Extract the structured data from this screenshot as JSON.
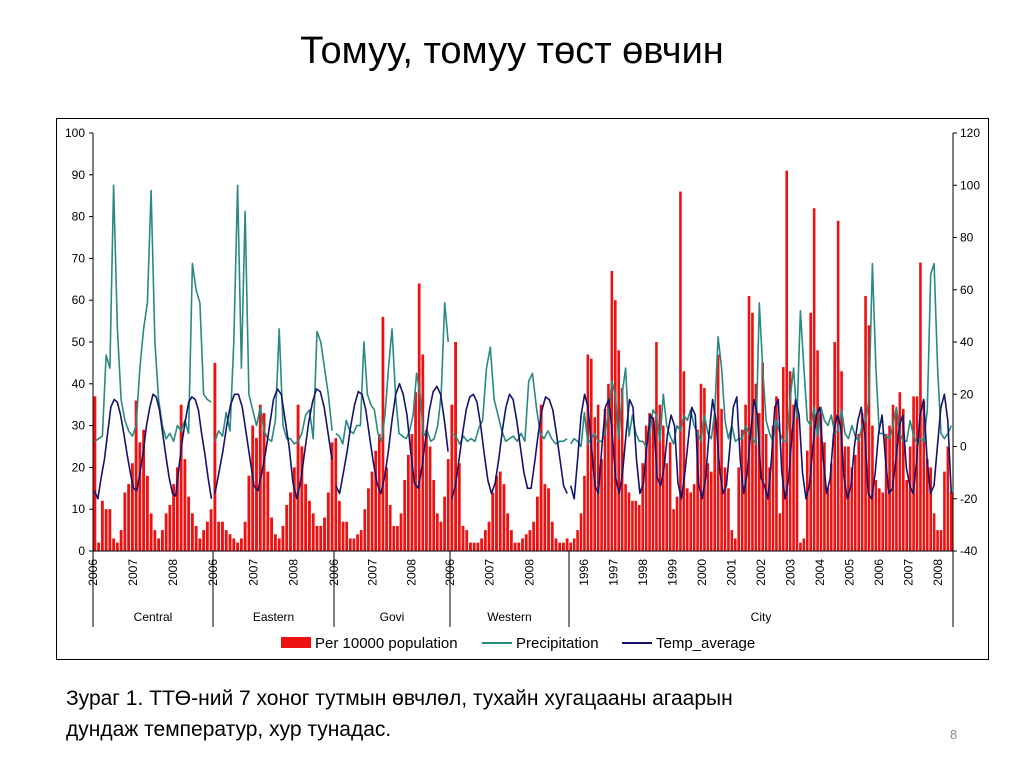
{
  "title": "Томуу, томуу төст өвчин",
  "caption_line1": "Зураг 1. ТТӨ-ний 7 хоног тутмын өвчлөл, тухайн хугацааны агаарын",
  "caption_line2": "дундаж температур, хур тунадас.",
  "page_number": "8",
  "colors": {
    "bars": "#ee1111",
    "precipitation": "#2a8a80",
    "temperature": "#14146e"
  },
  "chart_data": {
    "type": "bar",
    "combo": "bar + line (secondary axis)",
    "grid": false,
    "legend_position": "bottom",
    "y_left": {
      "ticks": [
        0,
        10,
        20,
        30,
        40,
        50,
        60,
        70,
        80,
        90,
        100
      ],
      "range": [
        0,
        100
      ]
    },
    "y_right": {
      "ticks": [
        -40,
        -20,
        0,
        20,
        40,
        60,
        80,
        100,
        120
      ],
      "range": [
        -40,
        120
      ]
    },
    "groups": [
      {
        "name": "Central",
        "year_labels": [
          "2006",
          "2007",
          "2008"
        ]
      },
      {
        "name": "Eastern",
        "year_labels": [
          "2006",
          "2007",
          "2008"
        ]
      },
      {
        "name": "Govi",
        "year_labels": [
          "2006",
          "2007",
          "2008"
        ]
      },
      {
        "name": "Western",
        "year_labels": [
          "2006",
          "2007",
          "2008"
        ]
      },
      {
        "name": "City",
        "year_labels": [
          "1996",
          "1997",
          "1998",
          "1999",
          "2000",
          "2001",
          "2002",
          "2003",
          "2004",
          "2005",
          "2006",
          "2007",
          "2008"
        ]
      }
    ],
    "series": [
      {
        "name": "Per 10000 population",
        "type": "bar",
        "axis": "left",
        "values": [
          [
            37,
            2,
            12,
            10,
            10,
            3,
            2,
            5,
            14,
            16,
            21,
            36,
            26,
            29,
            18,
            9,
            5,
            3,
            5,
            9,
            11,
            16,
            20,
            35,
            22,
            13,
            9,
            6,
            3,
            5,
            7,
            10
          ],
          [
            45,
            7,
            7,
            5,
            4,
            3,
            2,
            3,
            7,
            18,
            30,
            27,
            35,
            33,
            19,
            8,
            4,
            3,
            6,
            11,
            14,
            20,
            35,
            25,
            16,
            12,
            9,
            6,
            6,
            8,
            14,
            26
          ],
          [
            27,
            12,
            7,
            7,
            3,
            3,
            4,
            5,
            10,
            15,
            19,
            24,
            28,
            56,
            20,
            11,
            6,
            6,
            9,
            17,
            23,
            28,
            38,
            64,
            47,
            29,
            25,
            17,
            9,
            7,
            13,
            22
          ],
          [
            35,
            50,
            21,
            6,
            5,
            2,
            2,
            2,
            3,
            5,
            7,
            14,
            18,
            19,
            16,
            9,
            5,
            2,
            2,
            3,
            4,
            5,
            7,
            13,
            35,
            16,
            15,
            7,
            3,
            2,
            2,
            3
          ],
          [
            2,
            3,
            5,
            9,
            18,
            47,
            46,
            32,
            35,
            22,
            34,
            40,
            67,
            60,
            48,
            39,
            16,
            14,
            12,
            12,
            11,
            21,
            30,
            33,
            32,
            50,
            35,
            30,
            21,
            26,
            10,
            13,
            86,
            43,
            15,
            14,
            16,
            29,
            40,
            39,
            21,
            19,
            32,
            47,
            34,
            20,
            15,
            5,
            3,
            20,
            29,
            35,
            61,
            57,
            40,
            33,
            45,
            28,
            20,
            30,
            37,
            9,
            44,
            91,
            43,
            35,
            34,
            2,
            3,
            24,
            57,
            82,
            48,
            33,
            26,
            15,
            21,
            50,
            79,
            43,
            25,
            25,
            20,
            23,
            28,
            33,
            61,
            54,
            30,
            17,
            15,
            14,
            28,
            30,
            35,
            33,
            38,
            34,
            17,
            25,
            37,
            37,
            69,
            36,
            22,
            20,
            9,
            5,
            5,
            19,
            25,
            14
          ]
        ]
      },
      {
        "name": "Precipitation",
        "type": "line",
        "axis": "right",
        "values": [
          [
            2,
            3,
            4,
            35,
            30,
            100,
            45,
            18,
            10,
            6,
            4,
            8,
            30,
            45,
            55,
            98,
            40,
            18,
            8,
            3,
            5,
            2,
            8,
            6,
            10,
            5,
            70,
            60,
            55,
            20,
            18,
            17
          ],
          [
            2,
            6,
            4,
            13,
            6,
            40,
            100,
            30,
            90,
            20,
            14,
            8,
            15,
            6,
            3,
            2,
            10,
            45,
            8,
            3,
            3,
            1,
            2,
            5,
            12,
            14,
            3,
            44,
            40,
            30,
            20,
            6
          ],
          [
            5,
            4,
            1,
            10,
            6,
            5,
            8,
            8,
            40,
            20,
            16,
            14,
            5,
            2,
            12,
            30,
            45,
            20,
            5,
            4,
            3,
            6,
            12,
            28,
            20,
            4,
            6,
            2,
            3,
            8,
            20,
            55,
            40
          ],
          [
            5,
            4,
            1,
            4,
            2,
            3,
            2,
            7,
            10,
            30,
            38,
            18,
            12,
            6,
            2,
            3,
            4,
            2,
            5,
            2,
            25,
            28,
            15,
            5,
            3,
            6,
            3,
            1,
            2,
            2,
            3
          ],
          [
            1,
            3,
            2,
            0,
            13,
            1,
            3,
            5,
            2,
            2,
            5,
            12,
            25,
            20,
            3,
            20,
            30,
            4,
            12,
            5,
            2,
            2,
            0,
            5,
            14,
            12,
            2,
            20,
            8,
            4,
            1,
            8,
            6,
            12,
            10,
            14,
            8,
            5,
            2,
            12,
            5,
            3,
            13,
            42,
            30,
            10,
            3,
            8,
            2,
            3,
            3,
            8,
            5,
            3,
            1,
            55,
            30,
            10,
            5,
            2,
            10,
            5,
            2,
            2,
            18,
            30,
            11,
            52,
            30,
            10,
            8,
            15,
            4,
            15,
            10,
            8,
            12,
            5,
            6,
            14,
            5,
            3,
            8,
            4,
            2,
            8,
            10,
            18,
            70,
            30,
            5,
            5,
            4,
            3,
            8,
            15,
            5,
            2,
            2,
            10,
            4,
            1,
            3,
            2,
            14,
            66,
            70,
            30,
            5,
            3,
            5,
            8
          ]
        ]
      },
      {
        "name": "Temp_average",
        "type": "line",
        "axis": "right",
        "values": [
          [
            -17,
            -20,
            -12,
            -5,
            5,
            15,
            18,
            17,
            12,
            5,
            -3,
            -10,
            -16,
            -17,
            -10,
            -2,
            8,
            15,
            20,
            19,
            14,
            5,
            -4,
            -12,
            -18,
            -19,
            -8,
            2,
            10,
            17,
            19,
            18,
            14,
            5,
            -3,
            -12,
            -20
          ],
          [
            -18,
            -10,
            -2,
            8,
            16,
            20,
            20,
            15,
            5,
            -5,
            -15,
            -17,
            -10,
            -2,
            8,
            18,
            22,
            20,
            10,
            0,
            -14,
            -20,
            -13,
            -2,
            9,
            17,
            22,
            21,
            15,
            5,
            -5
          ],
          [
            -15,
            -18,
            -10,
            -2,
            8,
            16,
            21,
            20,
            14,
            4,
            -6,
            -14,
            -18,
            -12,
            -2,
            10,
            20,
            24,
            20,
            12,
            -2,
            -14,
            -16,
            -8,
            3,
            14,
            21,
            23,
            20,
            10,
            -2
          ],
          [
            -20,
            -15,
            -5,
            5,
            14,
            19,
            20,
            17,
            8,
            -3,
            -13,
            -18,
            -14,
            -5,
            6,
            15,
            20,
            18,
            10,
            0,
            -10,
            -16,
            -16,
            -6,
            5,
            14,
            19,
            18,
            14,
            5,
            -5,
            -15,
            -18
          ],
          [
            -15,
            -20,
            -5,
            12,
            20,
            15,
            0,
            -15,
            -18,
            0,
            15,
            18,
            5,
            -12,
            -18,
            -10,
            5,
            18,
            15,
            -5,
            -18,
            -14,
            0,
            12,
            10,
            -12,
            -15,
            -8,
            5,
            12,
            8,
            -14,
            -20,
            -10,
            3,
            15,
            12,
            -15,
            -20,
            -12,
            5,
            18,
            10,
            -8,
            -18,
            -15,
            0,
            15,
            19,
            -5,
            -18,
            -10,
            5,
            18,
            12,
            -12,
            -15,
            -20,
            -5,
            15,
            18,
            -10,
            -20,
            -12,
            5,
            18,
            12,
            -10,
            -20,
            -15,
            0,
            12,
            15,
            -5,
            -18,
            -12,
            5,
            12,
            8,
            -12,
            -20,
            -15,
            0,
            10,
            15,
            5,
            -18,
            -20,
            -10,
            5,
            12,
            -5,
            -18,
            -16,
            -5,
            8,
            12,
            -8,
            -15,
            -18,
            -5,
            12,
            18,
            -5,
            -18,
            -15,
            0,
            15,
            20,
            10,
            -18
          ]
        ]
      }
    ]
  }
}
